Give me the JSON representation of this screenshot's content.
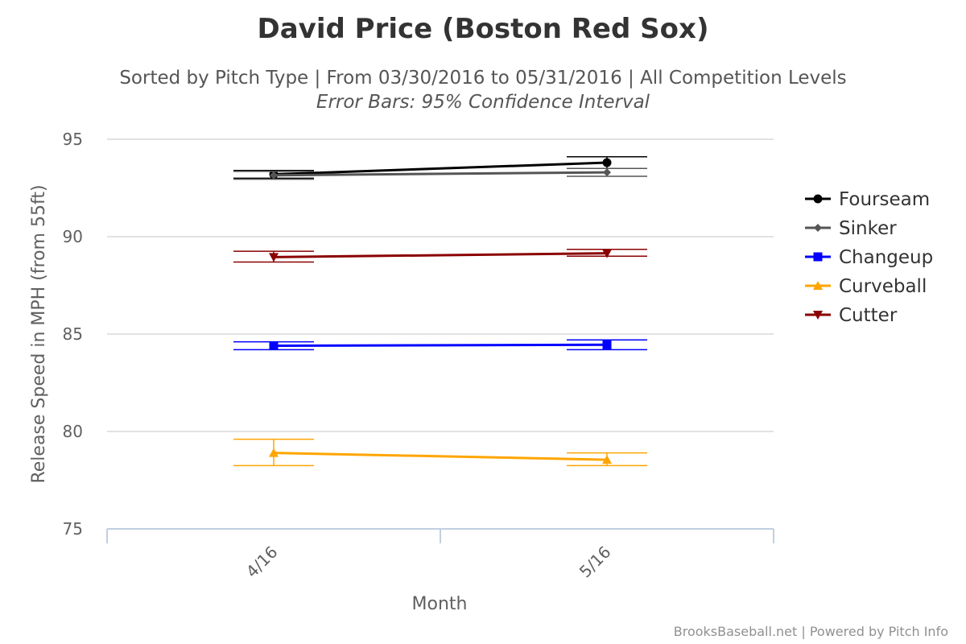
{
  "chart_data": {
    "type": "line",
    "title": "David Price (Boston Red Sox)",
    "subtitle": "Sorted by Pitch Type | From 03/30/2016 to 05/31/2016 | All Competition Levels",
    "subtitle2": "Error Bars: 95% Confidence Interval",
    "xlabel": "Month",
    "ylabel": "Release Speed in MPH (from 55ft)",
    "categories": [
      "4/16",
      "5/16"
    ],
    "ylim": [
      75,
      95
    ],
    "yticks": [
      "95",
      "90",
      "85",
      "80",
      "75"
    ],
    "grid": true,
    "legend_position": "right",
    "series": [
      {
        "name": "Fourseam",
        "color": "#000000",
        "marker": "circle",
        "values": [
          93.2,
          93.8
        ],
        "low": [
          93.0,
          93.5
        ],
        "high": [
          93.4,
          94.1
        ]
      },
      {
        "name": "Sinker",
        "color": "#555555",
        "marker": "diamond",
        "values": [
          93.15,
          93.3
        ],
        "low": [
          92.95,
          93.1
        ],
        "high": [
          93.35,
          93.5
        ]
      },
      {
        "name": "Changeup",
        "color": "#0000ff",
        "marker": "square",
        "values": [
          84.4,
          84.45
        ],
        "low": [
          84.2,
          84.2
        ],
        "high": [
          84.6,
          84.7
        ]
      },
      {
        "name": "Curveball",
        "color": "#ffa500",
        "marker": "triangle",
        "values": [
          78.9,
          78.55
        ],
        "low": [
          78.25,
          78.25
        ],
        "high": [
          79.6,
          78.9
        ]
      },
      {
        "name": "Cutter",
        "color": "#8b0000",
        "marker": "triangle-down",
        "values": [
          88.95,
          89.15
        ],
        "low": [
          88.7,
          89.0
        ],
        "high": [
          89.25,
          89.35
        ]
      }
    ]
  },
  "credit": "BrooksBaseball.net | Powered by Pitch Info"
}
